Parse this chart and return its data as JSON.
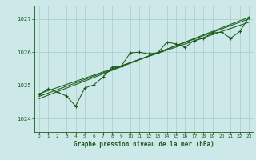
{
  "title": "Graphe pression niveau de la mer (hPa)",
  "bg_color": "#cce8e8",
  "line_color": "#1a5c1a",
  "grid_color": "#aacccc",
  "xlim": [
    -0.5,
    23.5
  ],
  "ylim": [
    1023.6,
    1027.4
  ],
  "yticks": [
    1024,
    1025,
    1026,
    1027
  ],
  "xticks": [
    0,
    1,
    2,
    3,
    4,
    5,
    6,
    7,
    8,
    9,
    10,
    11,
    12,
    13,
    14,
    15,
    16,
    17,
    18,
    19,
    20,
    21,
    22,
    23
  ],
  "series1": [
    [
      0,
      1024.72
    ],
    [
      1,
      1024.9
    ],
    [
      2,
      1024.8
    ],
    [
      3,
      1024.68
    ],
    [
      4,
      1024.38
    ],
    [
      5,
      1024.92
    ],
    [
      6,
      1025.02
    ],
    [
      7,
      1025.25
    ],
    [
      8,
      1025.55
    ],
    [
      9,
      1025.58
    ],
    [
      10,
      1025.98
    ],
    [
      11,
      1026.0
    ],
    [
      12,
      1025.95
    ],
    [
      13,
      1025.98
    ],
    [
      14,
      1026.3
    ],
    [
      15,
      1026.25
    ],
    [
      16,
      1026.15
    ],
    [
      17,
      1026.35
    ],
    [
      18,
      1026.42
    ],
    [
      19,
      1026.58
    ],
    [
      20,
      1026.6
    ],
    [
      21,
      1026.42
    ],
    [
      22,
      1026.62
    ],
    [
      23,
      1027.05
    ]
  ],
  "trend_lines": [
    [
      [
        0,
        1024.6
      ],
      [
        23,
        1027.05
      ]
    ],
    [
      [
        0,
        1024.67
      ],
      [
        23,
        1027.0
      ]
    ],
    [
      [
        0,
        1024.75
      ],
      [
        23,
        1026.9
      ]
    ]
  ]
}
